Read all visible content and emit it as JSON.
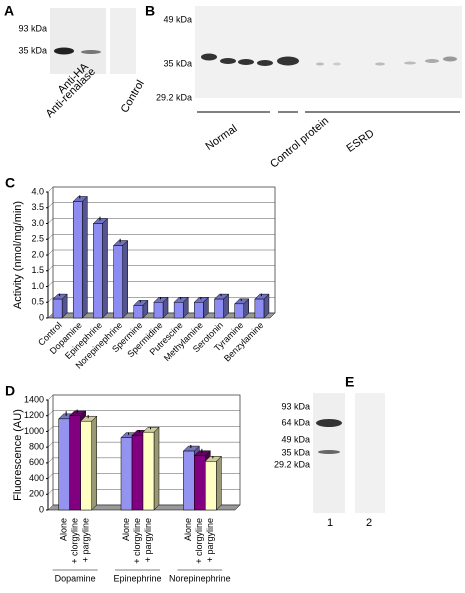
{
  "blots": [
    {
      "letter": "A",
      "markers": [
        "93 kDa",
        "35 kDa"
      ],
      "lanes": [
        "Anti-HA",
        "Anti-renalase",
        "Control"
      ]
    },
    {
      "letter": "B",
      "markers": [
        "49 kDa",
        "35 kDa",
        "29.2 kDa"
      ],
      "lanes": [
        "Normal",
        "Control protein",
        "ESRD"
      ]
    },
    {
      "letter": "E",
      "markers": [
        "93 kDa",
        "64 kDa",
        "49 kDa",
        "35 kDa",
        "29.2 kDa"
      ],
      "lanes": [
        "1",
        "2"
      ]
    }
  ],
  "chart_data": [
    {
      "type": "bar",
      "letter": "C",
      "y_label": "Activity (nmol/mg/min)",
      "categories": [
        "Control",
        "Dopamine",
        "Epinephrine",
        "Norepinephrine",
        "Spermine",
        "Spermidine",
        "Putrescine",
        "Methylamine",
        "Serotonin",
        "Tyramine",
        "Benzylamine"
      ],
      "values": [
        0.6,
        3.7,
        3.0,
        2.3,
        0.4,
        0.5,
        0.5,
        0.5,
        0.6,
        0.45,
        0.6
      ],
      "errors": [
        0.08,
        0.1,
        0.12,
        0.12,
        0.07,
        0.07,
        0.06,
        0.06,
        0.07,
        0.07,
        0.08
      ],
      "color": "#8c8cf2",
      "ylim": [
        0,
        4
      ],
      "yticks": [
        0,
        0.5,
        {
          "value": 1,
          "label": "1.0"
        },
        1.5,
        {
          "value": 2,
          "label": "2.0"
        },
        2.5,
        {
          "value": 3,
          "label": "3.0"
        },
        3.5,
        {
          "value": 4,
          "label": "4.0"
        }
      ],
      "grid": true
    },
    {
      "type": "grouped_bar",
      "letter": "D",
      "y_label": "Fluorescence (AU)",
      "categories": [
        "Dopamine",
        "Epinephrine",
        "Norepinephrine"
      ],
      "series": [
        {
          "name": "Alone",
          "color": "#9494f0",
          "values": [
            1160,
            920,
            750
          ],
          "errors": [
            60,
            30,
            40
          ]
        },
        {
          "name": "+ clorgyline",
          "color": "#800080",
          "values": [
            1200,
            950,
            690
          ],
          "errors": [
            40,
            30,
            50
          ]
        },
        {
          "name": "+ pargyline",
          "color": "#ffffc4",
          "values": [
            1130,
            990,
            620
          ],
          "errors": [
            40,
            20,
            30
          ]
        }
      ],
      "ylim": [
        0,
        1400
      ],
      "yticks": [
        0,
        200,
        400,
        600,
        800,
        1000,
        1200,
        1400
      ],
      "grid": true
    }
  ]
}
